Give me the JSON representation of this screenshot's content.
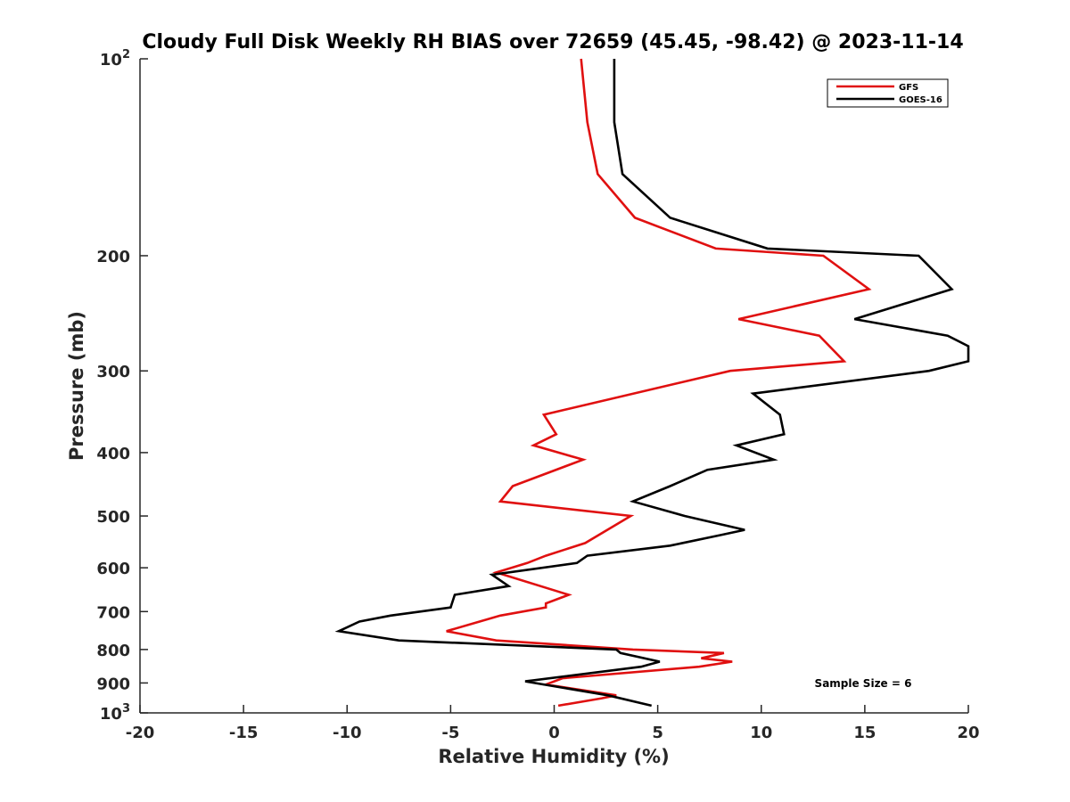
{
  "chart_data": {
    "type": "line",
    "title": "Cloudy Full Disk Weekly RH BIAS over 72659 (45.45, -98.42) @ 2023-11-14",
    "xlabel": "Relative Humidity (%)",
    "ylabel": "Pressure (mb)",
    "xlim": [
      -20,
      20
    ],
    "ylim": [
      100,
      1000
    ],
    "y_scale": "log",
    "y_reversed": true,
    "grid": false,
    "legend_position": "top-right",
    "x_ticks": [
      "-20",
      "-15",
      "-10",
      "-5",
      "0",
      "5",
      "10",
      "15",
      "20"
    ],
    "y_ticks": [
      {
        "value": 100,
        "base": "10",
        "exp": "2"
      },
      {
        "value": 200,
        "label": "200"
      },
      {
        "value": 300,
        "label": "300"
      },
      {
        "value": 400,
        "label": "400"
      },
      {
        "value": 500,
        "label": "500"
      },
      {
        "value": 600,
        "label": "600"
      },
      {
        "value": 700,
        "label": "700"
      },
      {
        "value": 800,
        "label": "800"
      },
      {
        "value": 900,
        "label": "900"
      },
      {
        "value": 1000,
        "base": "10",
        "exp": "3"
      }
    ],
    "annotation": "Sample Size = 6",
    "series": [
      {
        "name": "GFS",
        "color": "#e01010",
        "points": [
          [
            1.3,
            100
          ],
          [
            1.6,
            125
          ],
          [
            2.1,
            150
          ],
          [
            3.9,
            175
          ],
          [
            7.8,
            195
          ],
          [
            13.0,
            200
          ],
          [
            15.2,
            225
          ],
          [
            8.9,
            250
          ],
          [
            12.8,
            265
          ],
          [
            14.0,
            290
          ],
          [
            8.5,
            300
          ],
          [
            -0.5,
            350
          ],
          [
            0.1,
            375
          ],
          [
            -1.0,
            390
          ],
          [
            1.4,
            410
          ],
          [
            -2.0,
            450
          ],
          [
            -2.6,
            475
          ],
          [
            3.7,
            500
          ],
          [
            1.5,
            550
          ],
          [
            -0.4,
            575
          ],
          [
            -1.3,
            590
          ],
          [
            -2.8,
            610
          ],
          [
            0.7,
            660
          ],
          [
            -0.4,
            680
          ],
          [
            -0.4,
            690
          ],
          [
            -2.6,
            710
          ],
          [
            -3.6,
            725
          ],
          [
            -5.2,
            750
          ],
          [
            -2.8,
            775
          ],
          [
            3.8,
            800
          ],
          [
            8.2,
            810
          ],
          [
            7.1,
            825
          ],
          [
            8.6,
            835
          ],
          [
            7.0,
            850
          ],
          [
            0.4,
            885
          ],
          [
            -0.4,
            905
          ],
          [
            3.0,
            940
          ],
          [
            2.3,
            950
          ],
          [
            0.2,
            975
          ]
        ]
      },
      {
        "name": "GOES-16",
        "color": "#000000",
        "points": [
          [
            2.9,
            100
          ],
          [
            2.9,
            125
          ],
          [
            3.3,
            150
          ],
          [
            5.6,
            175
          ],
          [
            10.3,
            195
          ],
          [
            17.6,
            200
          ],
          [
            19.2,
            225
          ],
          [
            14.5,
            250
          ],
          [
            19.0,
            265
          ],
          [
            20.0,
            275
          ],
          [
            20.0,
            290
          ],
          [
            18.1,
            300
          ],
          [
            9.6,
            325
          ],
          [
            10.9,
            350
          ],
          [
            11.1,
            375
          ],
          [
            8.8,
            390
          ],
          [
            10.6,
            410
          ],
          [
            7.4,
            425
          ],
          [
            5.6,
            450
          ],
          [
            3.8,
            475
          ],
          [
            6.3,
            500
          ],
          [
            9.2,
            525
          ],
          [
            8.0,
            535
          ],
          [
            5.6,
            555
          ],
          [
            1.6,
            575
          ],
          [
            1.1,
            590
          ],
          [
            -3.0,
            615
          ],
          [
            -2.2,
            640
          ],
          [
            -4.8,
            660
          ],
          [
            -5.0,
            690
          ],
          [
            -7.9,
            710
          ],
          [
            -9.4,
            725
          ],
          [
            -10.4,
            750
          ],
          [
            -7.5,
            775
          ],
          [
            3.0,
            800
          ],
          [
            3.2,
            810
          ],
          [
            5.1,
            835
          ],
          [
            4.2,
            850
          ],
          [
            -1.4,
            895
          ],
          [
            2.6,
            940
          ],
          [
            4.7,
            975
          ]
        ]
      }
    ]
  }
}
